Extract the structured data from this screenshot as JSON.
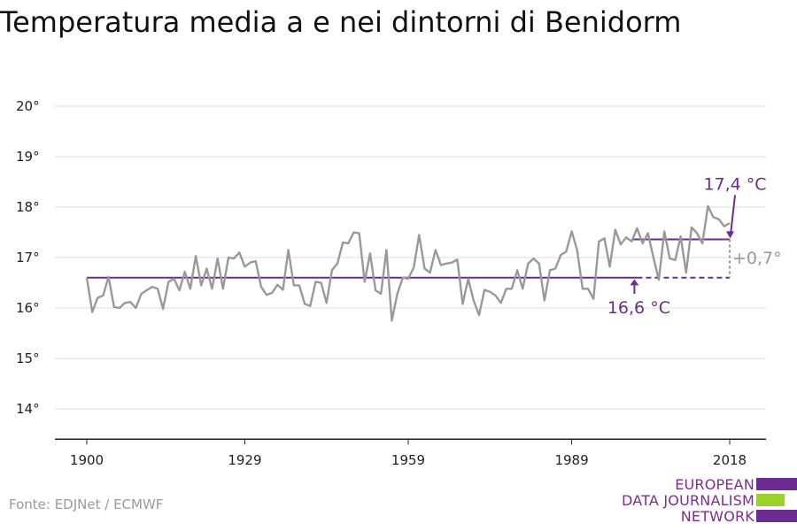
{
  "header": {
    "title": "Temperatura media a e nei dintorni di Benidorm"
  },
  "footer": {
    "source": "Fonte: EDJNet / ECMWF"
  },
  "logo": {
    "lines": [
      "EUROPEAN",
      "DATA JOURNALISM",
      "NETWORK"
    ]
  },
  "colors": {
    "series": "#999999",
    "accent": "#6b2c91",
    "grid": "#dddddd",
    "logo_green": "#9ad12b"
  },
  "chart_data": {
    "type": "line",
    "title": "Temperatura media a e nei dintorni di Benidorm",
    "xlabel": "",
    "ylabel": "",
    "xlim": [
      1900,
      2018
    ],
    "ylim": [
      13.4,
      20
    ],
    "x_ticks": [
      1900,
      1929,
      1959,
      1989,
      2018
    ],
    "x_tick_labels": [
      "1900",
      "1929",
      "1959",
      "1989",
      "2018"
    ],
    "y_ticks": [
      14,
      15,
      16,
      17,
      18,
      19,
      20
    ],
    "y_tick_labels": [
      "14°",
      "15°",
      "16°",
      "17°",
      "18°",
      "19°",
      "20°"
    ],
    "grid": true,
    "series": [
      {
        "x": [
          1900,
          1901,
          1902,
          1903,
          1904,
          1905,
          1906,
          1907,
          1908,
          1909,
          1910,
          1911,
          1912,
          1913,
          1914,
          1915,
          1916,
          1917,
          1918,
          1919,
          1920,
          1921,
          1922,
          1923,
          1924,
          1925,
          1926,
          1927,
          1928,
          1929,
          1930,
          1931,
          1932,
          1933,
          1934,
          1935,
          1936,
          1937,
          1938,
          1939,
          1940,
          1941,
          1942,
          1943,
          1944,
          1945,
          1946,
          1947,
          1948,
          1949,
          1950,
          1951,
          1952,
          1953,
          1954,
          1955,
          1956,
          1957,
          1958,
          1959,
          1960,
          1961,
          1962,
          1963,
          1964,
          1965,
          1966,
          1967,
          1968,
          1969,
          1970,
          1971,
          1972,
          1973,
          1974,
          1975,
          1976,
          1977,
          1978,
          1979,
          1980,
          1981,
          1982,
          1983,
          1984,
          1985,
          1986,
          1987,
          1988,
          1989,
          1990,
          1991,
          1992,
          1993,
          1994,
          1995,
          1996,
          1997,
          1998,
          1999,
          2000,
          2001,
          2002,
          2003,
          2004,
          2005,
          2006,
          2007,
          2008,
          2009,
          2010,
          2011,
          2012,
          2013,
          2014,
          2015,
          2016,
          2017,
          2018
        ],
        "values": [
          16.6,
          15.92,
          16.2,
          16.25,
          16.62,
          16.02,
          16.0,
          16.1,
          16.12,
          16.0,
          16.28,
          16.35,
          16.42,
          16.38,
          15.98,
          16.52,
          16.58,
          16.35,
          16.72,
          16.38,
          17.03,
          16.45,
          16.78,
          16.38,
          16.98,
          16.38,
          17.0,
          16.98,
          17.1,
          16.82,
          16.9,
          16.93,
          16.42,
          16.26,
          16.3,
          16.46,
          16.36,
          17.15,
          16.45,
          16.45,
          16.08,
          16.04,
          16.52,
          16.5,
          16.1,
          16.75,
          16.88,
          17.3,
          17.28,
          17.5,
          17.48,
          16.52,
          17.08,
          16.35,
          16.28,
          17.15,
          15.75,
          16.28,
          16.6,
          16.58,
          16.8,
          17.45,
          16.78,
          16.7,
          17.15,
          16.85,
          16.88,
          16.9,
          16.96,
          16.08,
          16.58,
          16.15,
          15.86,
          16.36,
          16.32,
          16.25,
          16.1,
          16.38,
          16.38,
          16.75,
          16.38,
          16.88,
          16.98,
          16.88,
          16.15,
          16.75,
          16.78,
          17.05,
          17.12,
          17.52,
          17.15,
          16.38,
          16.38,
          16.18,
          17.32,
          17.38,
          16.82,
          17.55,
          17.26,
          17.4,
          17.32,
          17.58,
          17.28,
          17.48,
          17.0,
          16.56,
          17.52,
          16.98,
          16.95,
          17.42,
          16.7,
          17.6,
          17.48,
          17.28,
          18.02,
          17.8,
          17.76,
          17.62,
          17.68
        ]
      }
    ],
    "reference_lines": [
      {
        "from": 1900,
        "to": 2001,
        "value": 16.6,
        "style": "solid"
      },
      {
        "from": 2001,
        "to": 2018,
        "value": 16.6,
        "style": "dashed"
      },
      {
        "from": 2000,
        "to": 2018,
        "value": 17.36,
        "style": "solid"
      }
    ],
    "annotations": [
      {
        "text": "17,4 °C",
        "x": 2018,
        "y": 18.45
      },
      {
        "text": "16,6 °C",
        "x": 2001,
        "y": 16.0
      },
      {
        "text": "+0,7°",
        "x": 2018,
        "y": 16.98
      }
    ]
  }
}
